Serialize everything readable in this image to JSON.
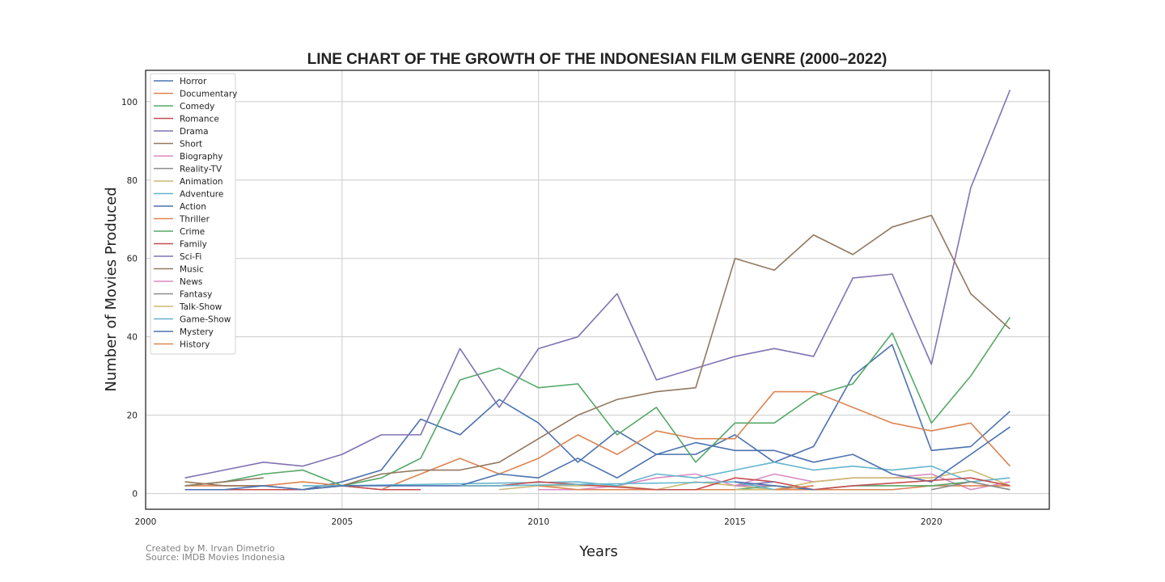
{
  "credits": {
    "line1": "Created by M. Irvan Dimetrio",
    "line2": "Source: IMDB Movies Indonesia"
  },
  "chart_data": {
    "type": "line",
    "title": "LINE CHART OF THE GROWTH OF THE INDONESIAN FILM GENRE (2000–2022)",
    "xlabel": "Years",
    "ylabel": "Number of Movies Produced",
    "xlim": [
      2000,
      2023
    ],
    "ylim": [
      -4,
      108
    ],
    "x_ticks": [
      2000,
      2005,
      2010,
      2015,
      2020
    ],
    "y_ticks": [
      0,
      20,
      40,
      60,
      80,
      100
    ],
    "grid": true,
    "legend_position": "top-left",
    "series": [
      {
        "name": "Horror",
        "color": "#4c72b0",
        "points": [
          [
            2001,
            1
          ],
          [
            2002,
            1
          ],
          [
            2003,
            1
          ],
          [
            2004,
            1
          ],
          [
            2005,
            3
          ],
          [
            2006,
            6
          ],
          [
            2007,
            19
          ],
          [
            2008,
            15
          ],
          [
            2009,
            24
          ],
          [
            2010,
            18
          ],
          [
            2011,
            8
          ],
          [
            2012,
            16
          ],
          [
            2013,
            10
          ],
          [
            2014,
            10
          ],
          [
            2015,
            15
          ],
          [
            2016,
            8
          ],
          [
            2017,
            12
          ],
          [
            2018,
            30
          ],
          [
            2019,
            38
          ],
          [
            2020,
            11
          ],
          [
            2021,
            12
          ],
          [
            2022,
            21
          ]
        ]
      },
      {
        "name": "Documentary",
        "color": "#dd8452",
        "points": [
          [
            2001,
            2
          ],
          [
            2002,
            2
          ],
          [
            2003,
            2
          ],
          [
            2004,
            3
          ],
          [
            2005,
            2
          ],
          [
            2006,
            1
          ],
          [
            2007,
            5
          ],
          [
            2008,
            9
          ],
          [
            2009,
            5
          ],
          [
            2010,
            9
          ],
          [
            2011,
            15
          ],
          [
            2012,
            10
          ],
          [
            2013,
            16
          ],
          [
            2014,
            14
          ],
          [
            2015,
            14
          ],
          [
            2016,
            26
          ],
          [
            2017,
            26
          ],
          [
            2018,
            22
          ],
          [
            2019,
            18
          ],
          [
            2020,
            16
          ],
          [
            2021,
            18
          ],
          [
            2022,
            7
          ]
        ]
      },
      {
        "name": "Comedy",
        "color": "#55a868",
        "points": [
          [
            2001,
            2
          ],
          [
            2002,
            3
          ],
          [
            2003,
            5
          ],
          [
            2004,
            6
          ],
          [
            2005,
            2
          ],
          [
            2006,
            4
          ],
          [
            2007,
            9
          ],
          [
            2008,
            29
          ],
          [
            2009,
            32
          ],
          [
            2010,
            27
          ],
          [
            2011,
            28
          ],
          [
            2012,
            15
          ],
          [
            2013,
            22
          ],
          [
            2014,
            8
          ],
          [
            2015,
            18
          ],
          [
            2016,
            18
          ],
          [
            2017,
            25
          ],
          [
            2018,
            28
          ],
          [
            2019,
            41
          ],
          [
            2020,
            18
          ],
          [
            2021,
            30
          ],
          [
            2022,
            45
          ]
        ]
      },
      {
        "name": "Romance",
        "color": "#c44e52",
        "points": [
          [
            2001,
            1
          ],
          [
            2002,
            1
          ],
          [
            2003,
            1
          ],
          [
            2004,
            1
          ],
          [
            2005,
            2
          ],
          [
            2006,
            1
          ],
          [
            2007,
            1
          ]
        ]
      },
      {
        "name": "Drama",
        "color": "#8172b3",
        "points": [
          [
            2001,
            4
          ],
          [
            2002,
            6
          ],
          [
            2003,
            8
          ],
          [
            2004,
            7
          ],
          [
            2005,
            10
          ],
          [
            2006,
            15
          ],
          [
            2007,
            15
          ],
          [
            2008,
            37
          ],
          [
            2009,
            22
          ],
          [
            2010,
            37
          ],
          [
            2011,
            40
          ],
          [
            2012,
            51
          ],
          [
            2013,
            29
          ],
          [
            2014,
            32
          ],
          [
            2015,
            35
          ],
          [
            2016,
            37
          ],
          [
            2017,
            35
          ],
          [
            2018,
            55
          ],
          [
            2019,
            56
          ],
          [
            2020,
            33
          ],
          [
            2021,
            78
          ],
          [
            2022,
            103
          ]
        ]
      },
      {
        "name": "Short",
        "color": "#937860",
        "points": [
          [
            2001,
            3
          ],
          [
            2002,
            2
          ],
          [
            2003,
            2
          ],
          [
            2004,
            1
          ],
          [
            2005,
            2
          ],
          [
            2006,
            5
          ],
          [
            2007,
            6
          ],
          [
            2008,
            6
          ],
          [
            2009,
            8
          ],
          [
            2010,
            14
          ],
          [
            2011,
            20
          ],
          [
            2012,
            24
          ],
          [
            2013,
            26
          ],
          [
            2014,
            27
          ],
          [
            2015,
            60
          ],
          [
            2016,
            57
          ],
          [
            2017,
            66
          ],
          [
            2018,
            61
          ],
          [
            2019,
            68
          ],
          [
            2020,
            71
          ],
          [
            2021,
            51
          ],
          [
            2022,
            42
          ]
        ]
      },
      {
        "name": "Biography",
        "color": "#da8bc3",
        "points": [
          [
            2010,
            1
          ],
          [
            2011,
            1
          ],
          [
            2012,
            2
          ],
          [
            2013,
            4
          ],
          [
            2014,
            5
          ],
          [
            2015,
            2
          ],
          [
            2016,
            5
          ],
          [
            2017,
            3
          ],
          [
            2018,
            4
          ],
          [
            2019,
            4
          ],
          [
            2020,
            5
          ],
          [
            2021,
            1
          ],
          [
            2022,
            3
          ]
        ]
      },
      {
        "name": "Reality-TV",
        "color": "#8c8c8c",
        "points": [
          [
            2015,
            1
          ],
          [
            2016,
            1
          ],
          [
            2017,
            1
          ]
        ]
      },
      {
        "name": "Animation",
        "color": "#ccb974",
        "points": [
          [
            2009,
            1
          ],
          [
            2010,
            2
          ],
          [
            2011,
            2
          ],
          [
            2012,
            2
          ],
          [
            2013,
            1
          ],
          [
            2014,
            3
          ],
          [
            2015,
            2
          ],
          [
            2016,
            1
          ],
          [
            2017,
            3
          ],
          [
            2018,
            4
          ],
          [
            2019,
            4
          ],
          [
            2020,
            4
          ],
          [
            2021,
            6
          ],
          [
            2022,
            2
          ]
        ]
      },
      {
        "name": "Adventure",
        "color": "#64b5cd",
        "points": [
          [
            2004,
            2
          ],
          [
            2005,
            2
          ],
          [
            2011,
            3
          ],
          [
            2012,
            2
          ],
          [
            2013,
            5
          ],
          [
            2014,
            4
          ],
          [
            2015,
            6
          ],
          [
            2016,
            8
          ],
          [
            2017,
            6
          ],
          [
            2018,
            7
          ],
          [
            2019,
            6
          ],
          [
            2020,
            7
          ],
          [
            2021,
            3
          ],
          [
            2022,
            4
          ]
        ]
      },
      {
        "name": "Action",
        "color": "#4c72b0",
        "points": [
          [
            2001,
            1
          ],
          [
            2002,
            1
          ],
          [
            2003,
            2
          ],
          [
            2004,
            1
          ],
          [
            2005,
            2
          ],
          [
            2006,
            2
          ],
          [
            2008,
            2
          ],
          [
            2009,
            5
          ],
          [
            2010,
            4
          ],
          [
            2011,
            9
          ],
          [
            2012,
            4
          ],
          [
            2013,
            10
          ],
          [
            2014,
            13
          ],
          [
            2015,
            11
          ],
          [
            2016,
            11
          ],
          [
            2017,
            8
          ],
          [
            2018,
            10
          ],
          [
            2019,
            5
          ],
          [
            2020,
            3
          ],
          [
            2021,
            10
          ],
          [
            2022,
            17
          ]
        ]
      },
      {
        "name": "Thriller",
        "color": "#dd8452",
        "points": [
          [
            2010,
            2
          ],
          [
            2011,
            1
          ],
          [
            2019,
            1
          ],
          [
            2020,
            2
          ],
          [
            2021,
            2
          ],
          [
            2022,
            2
          ]
        ]
      },
      {
        "name": "Crime",
        "color": "#55a868",
        "points": [
          [
            2015,
            1
          ],
          [
            2016,
            2
          ],
          [
            2017,
            1
          ],
          [
            2018,
            2
          ],
          [
            2019,
            2
          ],
          [
            2020,
            2
          ],
          [
            2021,
            3
          ],
          [
            2022,
            1
          ]
        ]
      },
      {
        "name": "Family",
        "color": "#c44e52",
        "points": [
          [
            2008,
            2
          ],
          [
            2009,
            2
          ],
          [
            2010,
            3
          ],
          [
            2013,
            1
          ],
          [
            2014,
            1
          ],
          [
            2015,
            4
          ],
          [
            2016,
            3
          ],
          [
            2017,
            1
          ],
          [
            2018,
            2
          ],
          [
            2021,
            4
          ],
          [
            2022,
            2
          ]
        ]
      },
      {
        "name": "Sci-Fi",
        "color": "#8172b3",
        "points": [
          [
            2015,
            2
          ],
          [
            2016,
            3
          ]
        ]
      },
      {
        "name": "Music",
        "color": "#937860",
        "points": [
          [
            2001,
            2
          ],
          [
            2002,
            3
          ],
          [
            2003,
            4
          ]
        ]
      },
      {
        "name": "News",
        "color": "#da8bc3",
        "points": [
          [
            2015,
            2
          ],
          [
            2016,
            2
          ]
        ]
      },
      {
        "name": "Fantasy",
        "color": "#8c8c8c",
        "points": [
          [
            2020,
            1
          ],
          [
            2021,
            3
          ],
          [
            2022,
            1
          ]
        ]
      },
      {
        "name": "Talk-Show",
        "color": "#ccb974",
        "points": [
          [
            2015,
            1
          ],
          [
            2016,
            1
          ]
        ]
      },
      {
        "name": "Game-Show",
        "color": "#64b5cd",
        "points": [
          [
            2008,
            2
          ],
          [
            2009,
            2
          ],
          [
            2015,
            3
          ],
          [
            2016,
            1
          ],
          [
            2017,
            2
          ]
        ]
      },
      {
        "name": "Mystery",
        "color": "#4c72b0",
        "points": [
          [
            2015,
            3
          ],
          [
            2016,
            2
          ],
          [
            2017,
            1
          ]
        ]
      },
      {
        "name": "History",
        "color": "#dd8452",
        "points": [
          [
            2016,
            1
          ],
          [
            2017,
            2
          ]
        ]
      }
    ]
  }
}
